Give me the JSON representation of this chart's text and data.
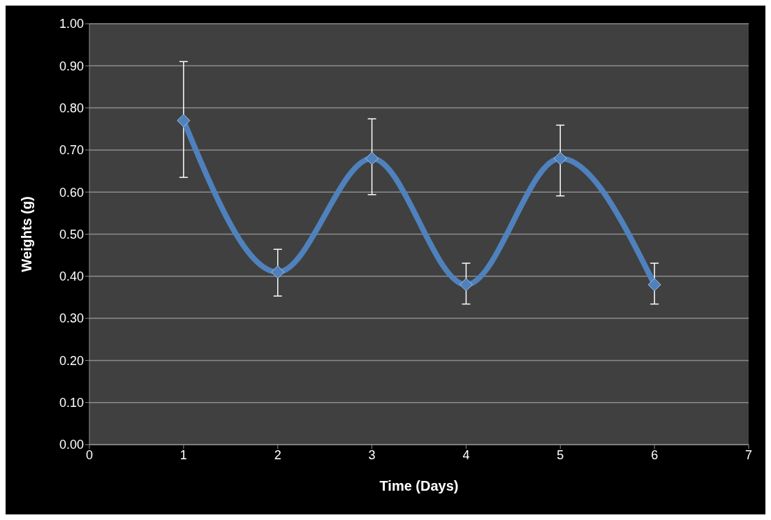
{
  "chart_data": {
    "type": "line",
    "xlabel": "Time (Days)",
    "ylabel": "Weights (g)",
    "x": [
      1,
      2,
      3,
      4,
      5,
      6
    ],
    "series": [
      {
        "color": "#4f81bd",
        "values": [
          0.77,
          0.41,
          0.68,
          0.38,
          0.68,
          0.38
        ],
        "errors": [
          [
            0.635,
            0.91
          ],
          [
            0.353,
            0.464
          ],
          [
            0.594,
            0.774
          ],
          [
            0.334,
            0.431
          ],
          [
            0.591,
            0.759
          ],
          [
            0.334,
            0.431
          ]
        ]
      }
    ],
    "xlim": [
      0,
      7
    ],
    "xticks": [
      0,
      1,
      2,
      3,
      4,
      5,
      6,
      7
    ],
    "ylim": [
      0,
      1
    ],
    "yticks": [
      {
        "value": 0,
        "label": "0.00"
      },
      {
        "value": 0.1,
        "label": "0.10"
      },
      {
        "value": 0.2,
        "label": "0.20"
      },
      {
        "value": 0.3,
        "label": "0.30"
      },
      {
        "value": 0.4,
        "label": "0.40"
      },
      {
        "value": 0.5,
        "label": "0.50"
      },
      {
        "value": 0.6,
        "label": "0.60"
      },
      {
        "value": 0.7,
        "label": "0.70"
      },
      {
        "value": 0.8,
        "label": "0.80"
      },
      {
        "value": 0.9,
        "label": "0.90"
      },
      {
        "value": 1,
        "label": "1.00"
      }
    ],
    "grid": "y",
    "legend": false,
    "marker": "diamond",
    "line_style": "solid"
  }
}
